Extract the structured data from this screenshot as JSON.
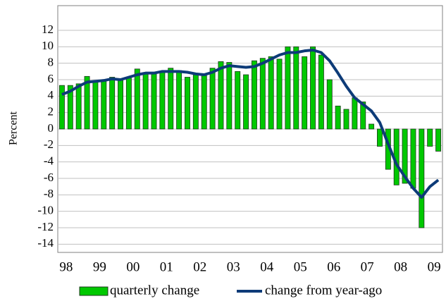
{
  "chart_data": {
    "type": "bar",
    "y_label": "Percent",
    "categories": [
      "98",
      null,
      null,
      null,
      "99",
      null,
      null,
      null,
      "00",
      null,
      null,
      null,
      "01",
      null,
      null,
      null,
      "02",
      null,
      null,
      null,
      "03",
      null,
      null,
      null,
      "04",
      null,
      null,
      null,
      "05",
      null,
      null,
      null,
      "06",
      null,
      null,
      null,
      "07",
      null,
      null,
      null,
      "08",
      null,
      null,
      null,
      "09",
      null
    ],
    "series": [
      {
        "name": "quarterly change",
        "type": "bar",
        "color": "#00c800",
        "values": [
          5.3,
          5.3,
          5.5,
          6.4,
          5.8,
          6.0,
          6.3,
          6.0,
          6.2,
          7.3,
          6.8,
          6.7,
          7.0,
          7.4,
          7.1,
          6.3,
          6.6,
          6.5,
          7.4,
          8.2,
          8.1,
          7.0,
          6.6,
          8.3,
          8.6,
          8.8,
          8.5,
          10.0,
          10.0,
          8.8,
          10.0,
          9.0,
          6.0,
          2.8,
          2.4,
          3.8,
          3.3,
          0.6,
          -2.1,
          -4.9,
          -6.8,
          -6.6,
          -7.2,
          -12.0,
          -2.1,
          -2.7
        ]
      },
      {
        "name": "change from year-ago",
        "type": "line",
        "color": "#0d3b78",
        "values": [
          4.2,
          4.6,
          5.2,
          5.7,
          5.8,
          5.9,
          6.1,
          6.0,
          6.3,
          6.6,
          6.8,
          6.8,
          7.0,
          7.0,
          7.0,
          6.9,
          6.7,
          6.6,
          6.9,
          7.4,
          7.7,
          7.6,
          7.5,
          7.6,
          8.0,
          8.5,
          9.0,
          9.3,
          9.3,
          9.5,
          9.6,
          9.3,
          8.3,
          6.8,
          5.2,
          3.8,
          3.0,
          2.2,
          0.8,
          -1.8,
          -4.3,
          -5.8,
          -7.2,
          -8.3,
          -7.0,
          -6.2
        ]
      }
    ],
    "ylim": [
      -15,
      15
    ],
    "yticks": [
      -14,
      -12,
      -10,
      -8,
      -6,
      -4,
      -2,
      0,
      2,
      4,
      6,
      8,
      10,
      12
    ],
    "grid": true
  }
}
